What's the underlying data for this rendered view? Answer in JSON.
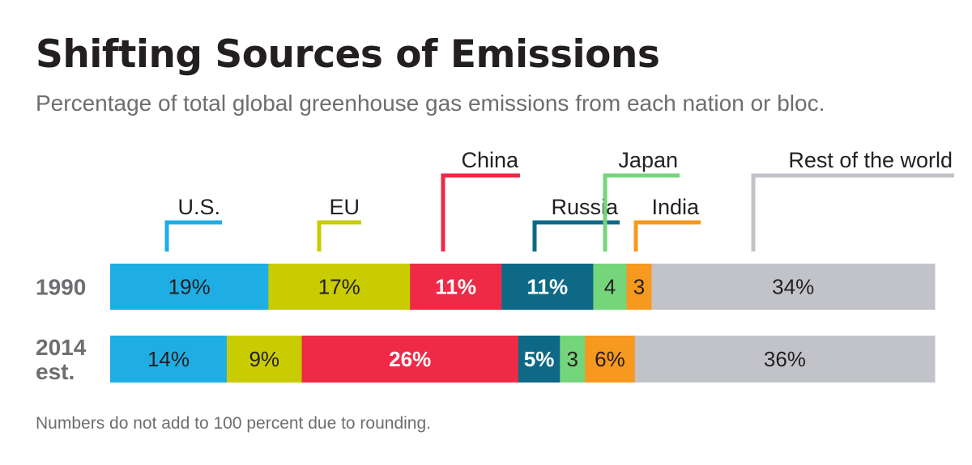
{
  "header": {
    "title": "Shifting Sources of Emissions",
    "subtitle": "Percentage of total global greenhouse gas emissions from each nation or bloc."
  },
  "footnote": "Numbers do not add to 100 percent due to rounding.",
  "colors": {
    "us": "#1faee4",
    "eu": "#c8cc00",
    "china": "#ee2a47",
    "russia": "#0e6987",
    "japan": "#74d57a",
    "india": "#f7981f",
    "rest": "#c2c3c8"
  },
  "chart_data": {
    "type": "bar",
    "orientation": "horizontal-stacked",
    "categories": [
      "1990",
      "2014 est."
    ],
    "category_lines": [
      [
        "1990"
      ],
      [
        "2014",
        "est."
      ]
    ],
    "series": [
      {
        "name": "U.S.",
        "key": "us",
        "values": [
          19,
          14
        ],
        "labels": [
          "19%",
          "14%"
        ]
      },
      {
        "name": "EU",
        "key": "eu",
        "values": [
          17,
          9
        ],
        "labels": [
          "17%",
          "9%"
        ]
      },
      {
        "name": "China",
        "key": "china",
        "values": [
          11,
          26
        ],
        "labels": [
          "11%",
          "26%"
        ]
      },
      {
        "name": "Russia",
        "key": "russia",
        "values": [
          11,
          5
        ],
        "labels": [
          "11%",
          "5%"
        ]
      },
      {
        "name": "Japan",
        "key": "japan",
        "values": [
          4,
          3
        ],
        "labels": [
          "4",
          "3"
        ]
      },
      {
        "name": "India",
        "key": "india",
        "values": [
          3,
          6
        ],
        "labels": [
          "3",
          "6%"
        ]
      },
      {
        "name": "Rest of the world",
        "key": "rest",
        "values": [
          34,
          36
        ],
        "labels": [
          "34%",
          "36%"
        ]
      }
    ],
    "legend_placement": "top, above 1990 bar",
    "grid": false
  }
}
